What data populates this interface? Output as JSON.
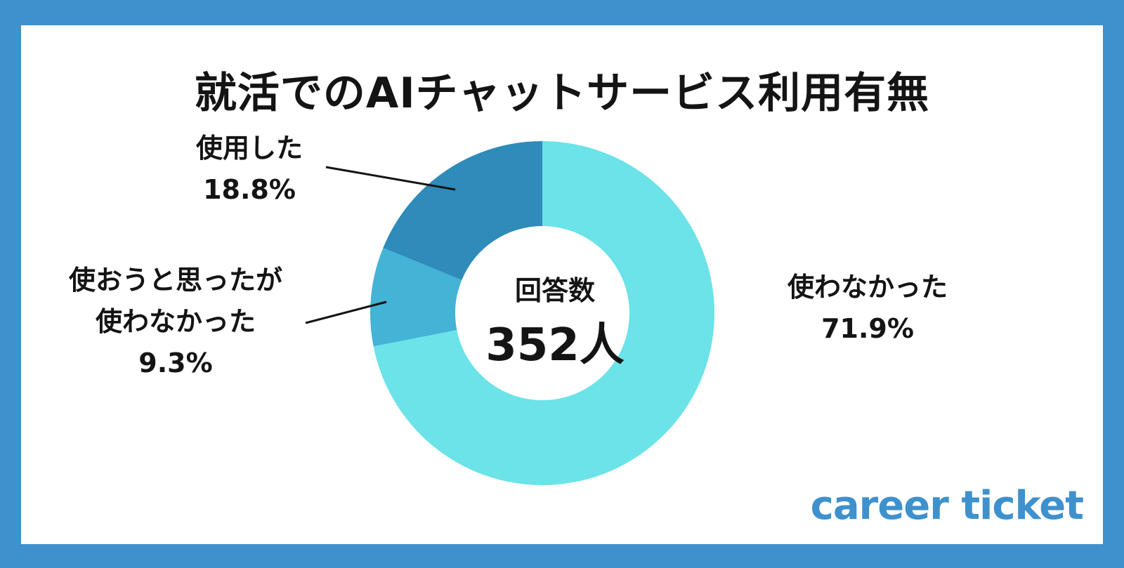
{
  "title": "就活でのAIチャットサービス利用有無",
  "logo": "career ticket",
  "colors": {
    "frame": "#3e91cd",
    "background": "#ffffff",
    "text": "#141414"
  },
  "center": {
    "title": "回答数",
    "value": "352人"
  },
  "chart_data": {
    "type": "pie",
    "title": "就活でのAIチャットサービス利用有無",
    "donut": true,
    "total_label": "回答数",
    "total": "352人",
    "labels": [
      "使わなかった",
      "使用した",
      "使おうと思ったが使わなかった"
    ],
    "values": [
      71.9,
      18.8,
      9.3
    ],
    "display": [
      "71.9%",
      "18.8%",
      "9.3%"
    ],
    "label_lines": [
      [
        "使わなかった"
      ],
      [
        "使用した"
      ],
      [
        "使おうと思ったが",
        "使わなかった"
      ]
    ],
    "colors": [
      "#6be3e8",
      "#2e8bba",
      "#43b3d6"
    ],
    "start": "12 o'clock",
    "direction": "clockwise"
  }
}
